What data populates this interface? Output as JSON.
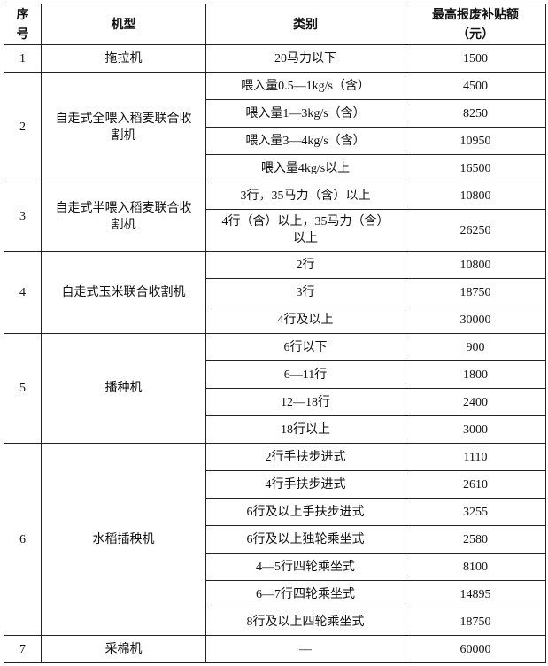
{
  "headers": {
    "no": "序号",
    "model": "机型",
    "category": "类别",
    "subsidy": "最高报废补贴额（元）"
  },
  "rows": [
    {
      "no": "1",
      "model": "拖拉机",
      "items": [
        {
          "category": "20马力以下",
          "amount": "1500"
        }
      ]
    },
    {
      "no": "2",
      "model": "自走式全喂入稻麦联合收割机",
      "items": [
        {
          "category": "喂入量0.5—1kg/s（含）",
          "amount": "4500"
        },
        {
          "category": "喂入量1—3kg/s（含）",
          "amount": "8250"
        },
        {
          "category": "喂入量3—4kg/s（含）",
          "amount": "10950"
        },
        {
          "category": "喂入量4kg/s以上",
          "amount": "16500"
        }
      ]
    },
    {
      "no": "3",
      "model": "自走式半喂入稻麦联合收割机",
      "items": [
        {
          "category": "3行，35马力（含）以上",
          "amount": "10800"
        },
        {
          "category": "4行（含）以上，35马力（含）以上",
          "amount": "26250"
        }
      ]
    },
    {
      "no": "4",
      "model": "自走式玉米联合收割机",
      "items": [
        {
          "category": "2行",
          "amount": "10800"
        },
        {
          "category": "3行",
          "amount": "18750"
        },
        {
          "category": "4行及以上",
          "amount": "30000"
        }
      ]
    },
    {
      "no": "5",
      "model": "播种机",
      "items": [
        {
          "category": "6行以下",
          "amount": "900"
        },
        {
          "category": "6—11行",
          "amount": "1800"
        },
        {
          "category": "12—18行",
          "amount": "2400"
        },
        {
          "category": "18行以上",
          "amount": "3000"
        }
      ]
    },
    {
      "no": "6",
      "model": "水稻插秧机",
      "items": [
        {
          "category": "2行手扶步进式",
          "amount": "1110"
        },
        {
          "category": "4行手扶步进式",
          "amount": "2610"
        },
        {
          "category": "6行及以上手扶步进式",
          "amount": "3255"
        },
        {
          "category": "6行及以上独轮乘坐式",
          "amount": "2580"
        },
        {
          "category": "4—5行四轮乘坐式",
          "amount": "8100"
        },
        {
          "category": "6—7行四轮乘坐式",
          "amount": "14895"
        },
        {
          "category": "8行及以上四轮乘坐式",
          "amount": "18750"
        }
      ]
    },
    {
      "no": "7",
      "model": "采棉机",
      "items": [
        {
          "category": "—",
          "amount": "60000"
        }
      ]
    }
  ]
}
